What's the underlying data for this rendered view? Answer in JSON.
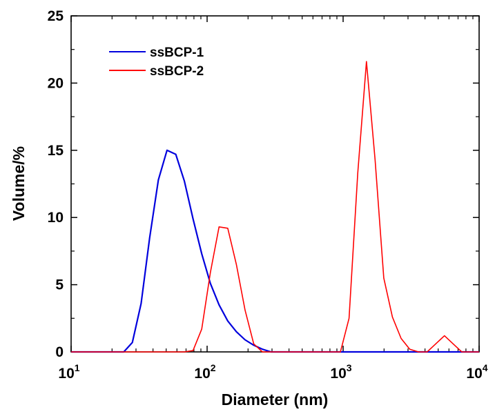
{
  "chart_data": {
    "type": "line",
    "title": "",
    "xlabel": "Diameter (nm)",
    "ylabel": "Volume/%",
    "x_scale": "log",
    "xlim": [
      10,
      10000
    ],
    "ylim": [
      0,
      25
    ],
    "x_ticks": [
      {
        "base": "10",
        "exp": "1",
        "value": 10
      },
      {
        "base": "10",
        "exp": "2",
        "value": 100
      },
      {
        "base": "10",
        "exp": "3",
        "value": 1000
      },
      {
        "base": "10",
        "exp": "4",
        "value": 10000
      }
    ],
    "y_ticks": [
      {
        "label": "0",
        "value": 0
      },
      {
        "label": "5",
        "value": 5
      },
      {
        "label": "10",
        "value": 10
      },
      {
        "label": "15",
        "value": 15
      },
      {
        "label": "20",
        "value": 20
      },
      {
        "label": "25",
        "value": 25
      }
    ],
    "grid": false,
    "legend_position": "top-left",
    "series": [
      {
        "name": "ssBCP-1",
        "color": "#0000dd",
        "x": [
          10,
          24.4,
          28.2,
          32.7,
          37.8,
          43.8,
          50.7,
          58.8,
          68.1,
          78.8,
          91.3,
          105.7,
          122.4,
          141.8,
          164.2,
          190.1,
          220.2,
          255.0,
          295.3,
          1000,
          10000
        ],
        "y": [
          0,
          0,
          0.7,
          3.6,
          8.5,
          12.8,
          15.0,
          14.7,
          12.7,
          9.9,
          7.3,
          5.1,
          3.5,
          2.3,
          1.5,
          0.9,
          0.5,
          0.2,
          0,
          0,
          0
        ]
      },
      {
        "name": "ssBCP-2",
        "color": "#ff0000",
        "x": [
          10,
          68.1,
          78.8,
          91.3,
          105.7,
          122.4,
          141.8,
          164.2,
          190.1,
          220.2,
          255.0,
          955,
          1106,
          1281,
          1484,
          1718,
          1990,
          2305,
          2669,
          3091,
          3580,
          4146,
          4801,
          5560,
          6439,
          7457,
          10000
        ],
        "y": [
          0,
          0,
          0.1,
          1.7,
          5.9,
          9.3,
          9.2,
          6.5,
          3.1,
          0.6,
          0,
          0,
          2.5,
          13.3,
          21.6,
          14.3,
          5.5,
          2.6,
          1.0,
          0.2,
          0,
          0,
          0.6,
          1.2,
          0.6,
          0,
          0
        ]
      }
    ]
  }
}
